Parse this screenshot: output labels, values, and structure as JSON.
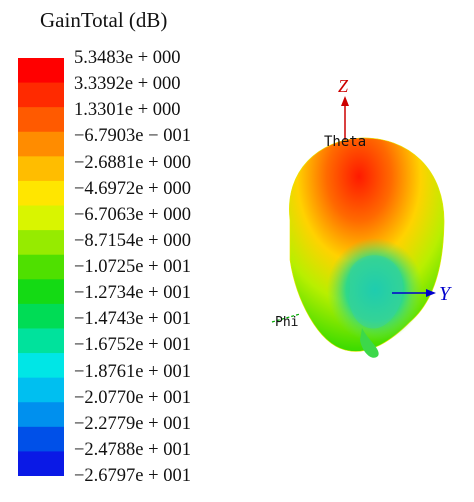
{
  "legend": {
    "title": "GainTotal (dB)",
    "ticks": [
      "5.3483e + 000",
      "3.3392e + 000",
      "1.3301e + 000",
      "−6.7903e − 001",
      "−2.6881e + 000",
      "−4.6972e + 000",
      "−6.7063e + 000",
      "−8.7154e + 000",
      "−1.0725e + 001",
      "−1.2734e + 001",
      "−1.4743e + 001",
      "−1.6752e + 001",
      "−1.8761e + 001",
      "−2.0770e + 001",
      "−2.2779e + 001",
      "−2.4788e + 001",
      "−2.6797e + 001"
    ],
    "colors": [
      "#ff0000",
      "#ff2a00",
      "#ff5a00",
      "#ff8c00",
      "#ffbd00",
      "#ffe600",
      "#d9f500",
      "#96eb00",
      "#4fe000",
      "#14da14",
      "#00dc55",
      "#00e29c",
      "#00e6e6",
      "#00bff0",
      "#0090ee",
      "#0050e8",
      "#0a19e6"
    ]
  },
  "axes": {
    "z_label": "Z",
    "y_label": "Y",
    "theta_label": "Theta",
    "phi_label": "Phi",
    "z_color": "#cc0000",
    "y_color": "#0000cc",
    "phi_color": "#00aa00"
  }
}
